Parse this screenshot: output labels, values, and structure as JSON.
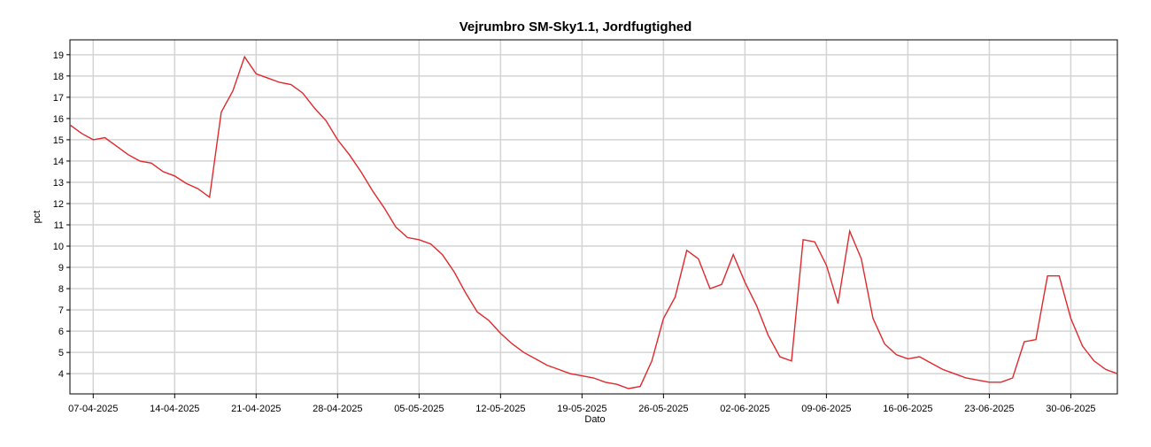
{
  "chart_data": {
    "type": "line",
    "title": "Vejrumbro SM-Sky1.1, Jordfugtighed",
    "x_label": "Dato",
    "y_label": "pct",
    "x": [
      "05-04-2025",
      "06-04-2025",
      "07-04-2025",
      "08-04-2025",
      "09-04-2025",
      "10-04-2025",
      "11-04-2025",
      "12-04-2025",
      "13-04-2025",
      "14-04-2025",
      "15-04-2025",
      "16-04-2025",
      "17-04-2025",
      "18-04-2025",
      "19-04-2025",
      "20-04-2025",
      "21-04-2025",
      "22-04-2025",
      "23-04-2025",
      "24-04-2025",
      "25-04-2025",
      "26-04-2025",
      "27-04-2025",
      "28-04-2025",
      "29-04-2025",
      "30-04-2025",
      "01-05-2025",
      "02-05-2025",
      "03-05-2025",
      "04-05-2025",
      "05-05-2025",
      "06-05-2025",
      "07-05-2025",
      "08-05-2025",
      "09-05-2025",
      "10-05-2025",
      "11-05-2025",
      "12-05-2025",
      "13-05-2025",
      "14-05-2025",
      "15-05-2025",
      "16-05-2025",
      "17-05-2025",
      "18-05-2025",
      "19-05-2025",
      "20-05-2025",
      "21-05-2025",
      "22-05-2025",
      "23-05-2025",
      "24-05-2025",
      "25-05-2025",
      "26-05-2025",
      "27-05-2025",
      "28-05-2025",
      "29-05-2025",
      "30-05-2025",
      "31-05-2025",
      "01-06-2025",
      "02-06-2025",
      "03-06-2025",
      "04-06-2025",
      "05-06-2025",
      "06-06-2025",
      "07-06-2025",
      "08-06-2025",
      "09-06-2025",
      "10-06-2025",
      "11-06-2025",
      "12-06-2025",
      "13-06-2025",
      "14-06-2025",
      "15-06-2025",
      "16-06-2025",
      "17-06-2025",
      "18-06-2025",
      "19-06-2025",
      "20-06-2025",
      "21-06-2025",
      "22-06-2025",
      "23-06-2025",
      "24-06-2025",
      "25-06-2025",
      "26-06-2025",
      "27-06-2025",
      "28-06-2025",
      "29-06-2025",
      "30-06-2025",
      "01-07-2025",
      "02-07-2025",
      "03-07-2025",
      "04-07-2025"
    ],
    "series": [
      {
        "name": "Jordfugtighed",
        "color": "#e0282c",
        "values": [
          15.7,
          15.3,
          15.0,
          15.1,
          14.7,
          14.3,
          14.0,
          13.9,
          13.5,
          13.3,
          12.95,
          12.7,
          12.3,
          16.3,
          17.3,
          18.9,
          18.1,
          17.9,
          17.7,
          17.6,
          17.2,
          16.5,
          15.9,
          15.0,
          14.3,
          13.5,
          12.6,
          11.8,
          10.9,
          10.4,
          10.3,
          10.1,
          9.6,
          8.8,
          7.8,
          6.9,
          6.5,
          5.9,
          5.4,
          5.0,
          4.7,
          4.4,
          4.2,
          4.0,
          3.9,
          3.8,
          3.6,
          3.5,
          3.3,
          3.4,
          4.6,
          6.6,
          7.6,
          9.8,
          9.4,
          8.0,
          8.2,
          9.6,
          8.3,
          7.2,
          5.8,
          4.8,
          4.6,
          10.3,
          10.2,
          9.1,
          7.3,
          10.7,
          9.4,
          6.6,
          5.4,
          4.9,
          4.7,
          4.8,
          4.5,
          4.2,
          4.0,
          3.8,
          3.7,
          3.6,
          3.6,
          3.8,
          5.5,
          5.6,
          8.6,
          8.6,
          6.6,
          5.3,
          4.6,
          4.2,
          4.0
        ]
      }
    ],
    "xlim": [
      "05-04-2025",
      "04-07-2025"
    ],
    "xticks": [
      "07-04-2025",
      "14-04-2025",
      "21-04-2025",
      "28-04-2025",
      "05-05-2025",
      "12-05-2025",
      "19-05-2025",
      "26-05-2025",
      "02-06-2025",
      "09-06-2025",
      "16-06-2025",
      "23-06-2025",
      "30-06-2025"
    ],
    "ylim": [
      3.05,
      19.7
    ],
    "yticks": [
      4,
      5,
      6,
      7,
      8,
      9,
      10,
      11,
      12,
      13,
      14,
      15,
      16,
      17,
      18,
      19
    ],
    "grid": true
  }
}
